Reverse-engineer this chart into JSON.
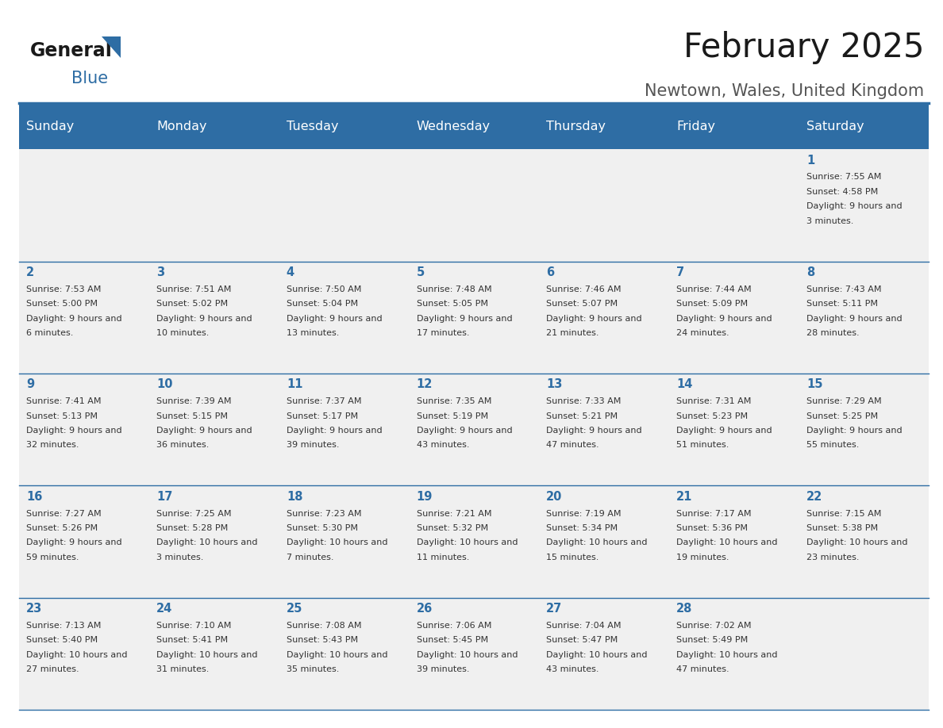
{
  "title": "February 2025",
  "subtitle": "Newtown, Wales, United Kingdom",
  "header_bg": "#2E6DA4",
  "header_text_color": "#FFFFFF",
  "cell_bg": "#F0F0F0",
  "border_color": "#2E6DA4",
  "day_number_color": "#2E6DA4",
  "text_color": "#333333",
  "days_of_week": [
    "Sunday",
    "Monday",
    "Tuesday",
    "Wednesday",
    "Thursday",
    "Friday",
    "Saturday"
  ],
  "weeks": [
    [
      {
        "day": "",
        "sunrise": "",
        "sunset": "",
        "daylight": ""
      },
      {
        "day": "",
        "sunrise": "",
        "sunset": "",
        "daylight": ""
      },
      {
        "day": "",
        "sunrise": "",
        "sunset": "",
        "daylight": ""
      },
      {
        "day": "",
        "sunrise": "",
        "sunset": "",
        "daylight": ""
      },
      {
        "day": "",
        "sunrise": "",
        "sunset": "",
        "daylight": ""
      },
      {
        "day": "",
        "sunrise": "",
        "sunset": "",
        "daylight": ""
      },
      {
        "day": "1",
        "sunrise": "7:55 AM",
        "sunset": "4:58 PM",
        "daylight": "9 hours and 3 minutes."
      }
    ],
    [
      {
        "day": "2",
        "sunrise": "7:53 AM",
        "sunset": "5:00 PM",
        "daylight": "9 hours and 6 minutes."
      },
      {
        "day": "3",
        "sunrise": "7:51 AM",
        "sunset": "5:02 PM",
        "daylight": "9 hours and 10 minutes."
      },
      {
        "day": "4",
        "sunrise": "7:50 AM",
        "sunset": "5:04 PM",
        "daylight": "9 hours and 13 minutes."
      },
      {
        "day": "5",
        "sunrise": "7:48 AM",
        "sunset": "5:05 PM",
        "daylight": "9 hours and 17 minutes."
      },
      {
        "day": "6",
        "sunrise": "7:46 AM",
        "sunset": "5:07 PM",
        "daylight": "9 hours and 21 minutes."
      },
      {
        "day": "7",
        "sunrise": "7:44 AM",
        "sunset": "5:09 PM",
        "daylight": "9 hours and 24 minutes."
      },
      {
        "day": "8",
        "sunrise": "7:43 AM",
        "sunset": "5:11 PM",
        "daylight": "9 hours and 28 minutes."
      }
    ],
    [
      {
        "day": "9",
        "sunrise": "7:41 AM",
        "sunset": "5:13 PM",
        "daylight": "9 hours and 32 minutes."
      },
      {
        "day": "10",
        "sunrise": "7:39 AM",
        "sunset": "5:15 PM",
        "daylight": "9 hours and 36 minutes."
      },
      {
        "day": "11",
        "sunrise": "7:37 AM",
        "sunset": "5:17 PM",
        "daylight": "9 hours and 39 minutes."
      },
      {
        "day": "12",
        "sunrise": "7:35 AM",
        "sunset": "5:19 PM",
        "daylight": "9 hours and 43 minutes."
      },
      {
        "day": "13",
        "sunrise": "7:33 AM",
        "sunset": "5:21 PM",
        "daylight": "9 hours and 47 minutes."
      },
      {
        "day": "14",
        "sunrise": "7:31 AM",
        "sunset": "5:23 PM",
        "daylight": "9 hours and 51 minutes."
      },
      {
        "day": "15",
        "sunrise": "7:29 AM",
        "sunset": "5:25 PM",
        "daylight": "9 hours and 55 minutes."
      }
    ],
    [
      {
        "day": "16",
        "sunrise": "7:27 AM",
        "sunset": "5:26 PM",
        "daylight": "9 hours and 59 minutes."
      },
      {
        "day": "17",
        "sunrise": "7:25 AM",
        "sunset": "5:28 PM",
        "daylight": "10 hours and 3 minutes."
      },
      {
        "day": "18",
        "sunrise": "7:23 AM",
        "sunset": "5:30 PM",
        "daylight": "10 hours and 7 minutes."
      },
      {
        "day": "19",
        "sunrise": "7:21 AM",
        "sunset": "5:32 PM",
        "daylight": "10 hours and 11 minutes."
      },
      {
        "day": "20",
        "sunrise": "7:19 AM",
        "sunset": "5:34 PM",
        "daylight": "10 hours and 15 minutes."
      },
      {
        "day": "21",
        "sunrise": "7:17 AM",
        "sunset": "5:36 PM",
        "daylight": "10 hours and 19 minutes."
      },
      {
        "day": "22",
        "sunrise": "7:15 AM",
        "sunset": "5:38 PM",
        "daylight": "10 hours and 23 minutes."
      }
    ],
    [
      {
        "day": "23",
        "sunrise": "7:13 AM",
        "sunset": "5:40 PM",
        "daylight": "10 hours and 27 minutes."
      },
      {
        "day": "24",
        "sunrise": "7:10 AM",
        "sunset": "5:41 PM",
        "daylight": "10 hours and 31 minutes."
      },
      {
        "day": "25",
        "sunrise": "7:08 AM",
        "sunset": "5:43 PM",
        "daylight": "10 hours and 35 minutes."
      },
      {
        "day": "26",
        "sunrise": "7:06 AM",
        "sunset": "5:45 PM",
        "daylight": "10 hours and 39 minutes."
      },
      {
        "day": "27",
        "sunrise": "7:04 AM",
        "sunset": "5:47 PM",
        "daylight": "10 hours and 43 minutes."
      },
      {
        "day": "28",
        "sunrise": "7:02 AM",
        "sunset": "5:49 PM",
        "daylight": "10 hours and 47 minutes."
      },
      {
        "day": "",
        "sunrise": "",
        "sunset": "",
        "daylight": ""
      }
    ]
  ]
}
